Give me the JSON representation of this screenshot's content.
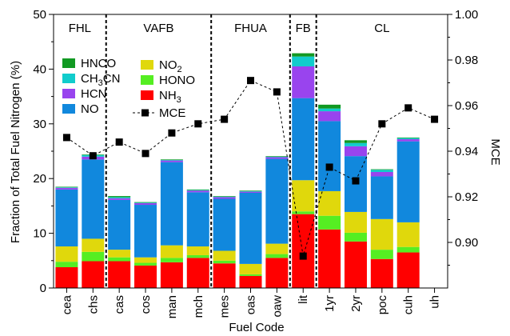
{
  "chart_data": {
    "type": "bar",
    "stacked": true,
    "xlabel": "Fuel Code",
    "ylabel": "Fraction of Total Fuel Nitrogen (%)",
    "y2label": "MCE",
    "categories": [
      "cea",
      "chs",
      "cas",
      "cos",
      "man",
      "mch",
      "mes",
      "oas",
      "oaw",
      "lit",
      "1yr",
      "2yr",
      "poc",
      "cuh",
      "uh"
    ],
    "ylim": [
      0,
      50
    ],
    "yticks": [
      "0",
      "10",
      "20",
      "30",
      "40",
      "50"
    ],
    "y2lim": [
      0.88,
      1.0
    ],
    "y2ticks": [
      "0.90",
      "0.92",
      "0.94",
      "0.96",
      "0.98",
      "1.00"
    ],
    "grid": false,
    "groups": [
      {
        "label": "FHL",
        "start": 0,
        "end": 1
      },
      {
        "label": "VAFB",
        "start": 2,
        "end": 5
      },
      {
        "label": "FHUA",
        "start": 6,
        "end": 8
      },
      {
        "label": "FB",
        "start": 9,
        "end": 9
      },
      {
        "label": "CL",
        "start": 10,
        "end": 14
      }
    ],
    "series": [
      {
        "name": "NH3",
        "color": "#ff0000",
        "values": [
          3.8,
          4.9,
          4.9,
          4.1,
          4.7,
          5.5,
          4.5,
          2.2,
          5.5,
          13.5,
          10.7,
          8.5,
          5.3,
          6.5,
          0
        ]
      },
      {
        "name": "HONO",
        "color": "#55ee22",
        "values": [
          1.0,
          1.7,
          0.7,
          0.5,
          0.8,
          0.5,
          0.5,
          0.3,
          0.7,
          0.5,
          2.5,
          1.6,
          1.7,
          1.0,
          0
        ]
      },
      {
        "name": "NO2",
        "color": "#e0d80c",
        "values": [
          2.8,
          2.4,
          1.4,
          1.0,
          2.3,
          1.6,
          1.8,
          1.9,
          1.9,
          5.7,
          4.5,
          3.8,
          5.6,
          4.5,
          0
        ]
      },
      {
        "name": "NO",
        "color": "#1188dd",
        "values": [
          10.4,
          14.5,
          9.1,
          9.6,
          15.2,
          9.9,
          9.5,
          13.0,
          15.5,
          15.0,
          12.8,
          10.2,
          7.8,
          14.8,
          0
        ]
      },
      {
        "name": "HCN",
        "color": "#9944ee",
        "values": [
          0.3,
          0.5,
          0.3,
          0.3,
          0.3,
          0.3,
          0.3,
          0.2,
          0.3,
          5.8,
          1.8,
          1.8,
          0.8,
          0.4,
          0
        ]
      },
      {
        "name": "CH3CN",
        "color": "#11cccc",
        "values": [
          0.1,
          0.3,
          0.2,
          0.1,
          0.1,
          0.1,
          0.1,
          0.1,
          0.1,
          1.8,
          0.5,
          0.6,
          0.4,
          0.2,
          0
        ]
      },
      {
        "name": "HNCO",
        "color": "#119922",
        "values": [
          0.1,
          0.1,
          0.2,
          0.1,
          0.1,
          0.1,
          0.1,
          0.1,
          0.1,
          0.6,
          0.7,
          0.5,
          0.1,
          0.1,
          0
        ]
      }
    ],
    "mce_series": {
      "name": "MCE",
      "values": [
        0.946,
        0.938,
        0.944,
        0.939,
        0.948,
        0.952,
        0.954,
        0.971,
        0.966,
        0.894,
        0.933,
        0.927,
        0.952,
        0.959,
        0.954
      ]
    },
    "legend": {
      "placement": "upper-left",
      "items": [
        {
          "series": "HNCO",
          "label": "HNCO",
          "color": "#119922"
        },
        {
          "series": "CH3CN",
          "label": "CH",
          "sub": "3",
          "label2": "CN",
          "color": "#11cccc"
        },
        {
          "series": "HCN",
          "label": "HCN",
          "color": "#9944ee"
        },
        {
          "series": "NO",
          "label": "NO",
          "color": "#1188dd"
        },
        {
          "series": "NO2",
          "label": "NO",
          "sub": "2",
          "label2": "",
          "color": "#e0d80c"
        },
        {
          "series": "HONO",
          "label": "HONO",
          "color": "#55ee22"
        },
        {
          "series": "NH3",
          "label": "NH",
          "sub": "3",
          "label2": "",
          "color": "#ff0000"
        },
        {
          "series": "MCE",
          "label": "MCE",
          "marker": true
        }
      ]
    }
  }
}
